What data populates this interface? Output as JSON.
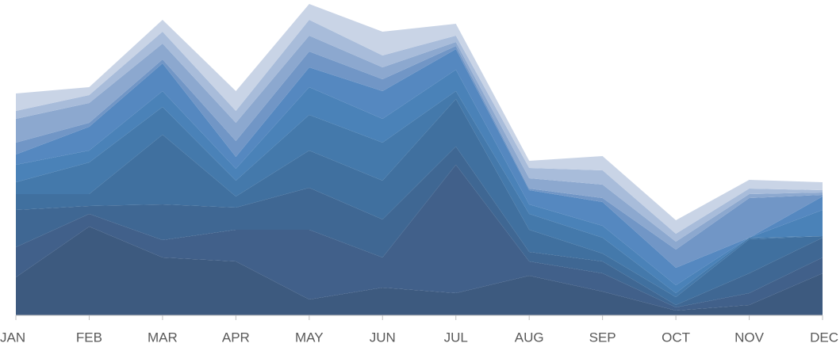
{
  "chart_data": {
    "type": "stacked-area",
    "categories": [
      "JAN",
      "FEB",
      "MAR",
      "APR",
      "MAY",
      "JUN",
      "JUL",
      "AUG",
      "SEP",
      "OCT",
      "NOV",
      "DEC"
    ],
    "ylim": [
      0,
      400
    ],
    "series": [
      {
        "color": "#3d5a7f",
        "values": [
          48,
          112,
          73,
          68,
          20,
          35,
          28,
          50,
          30,
          6,
          13,
          53
        ]
      },
      {
        "color": "#41608a",
        "values": [
          38,
          16,
          22,
          40,
          88,
          38,
          162,
          18,
          23,
          4,
          15,
          20
        ]
      },
      {
        "color": "#3f6793",
        "values": [
          47,
          10,
          45,
          28,
          53,
          48,
          23,
          12,
          15,
          3,
          25,
          25
        ]
      },
      {
        "color": "#40709f",
        "values": [
          20,
          15,
          88,
          14,
          47,
          49,
          60,
          28,
          10,
          10,
          43,
          2
        ]
      },
      {
        "color": "#4479ab",
        "values": [
          15,
          40,
          35,
          20,
          45,
          48,
          10,
          20,
          20,
          5,
          2,
          0
        ]
      },
      {
        "color": "#4a82b8",
        "values": [
          22,
          15,
          20,
          15,
          35,
          30,
          27,
          12,
          15,
          10,
          0,
          33
        ]
      },
      {
        "color": "#5588c0",
        "values": [
          13,
          30,
          35,
          15,
          25,
          35,
          26,
          18,
          30,
          22,
          0,
          17
        ]
      },
      {
        "color": "#7196c6",
        "values": [
          15,
          5,
          5,
          20,
          20,
          15,
          4,
          2,
          5,
          23,
          50,
          2
        ]
      },
      {
        "color": "#8ca8cf",
        "values": [
          30,
          25,
          20,
          23,
          20,
          15,
          5,
          13,
          17,
          10,
          5,
          3
        ]
      },
      {
        "color": "#a8bcda",
        "values": [
          10,
          10,
          15,
          15,
          20,
          15,
          8,
          13,
          18,
          10,
          7,
          3
        ]
      },
      {
        "color": "#c9d4e6",
        "values": [
          22,
          10,
          15,
          25,
          20,
          30,
          15,
          9,
          18,
          17,
          11,
          10
        ]
      }
    ]
  }
}
